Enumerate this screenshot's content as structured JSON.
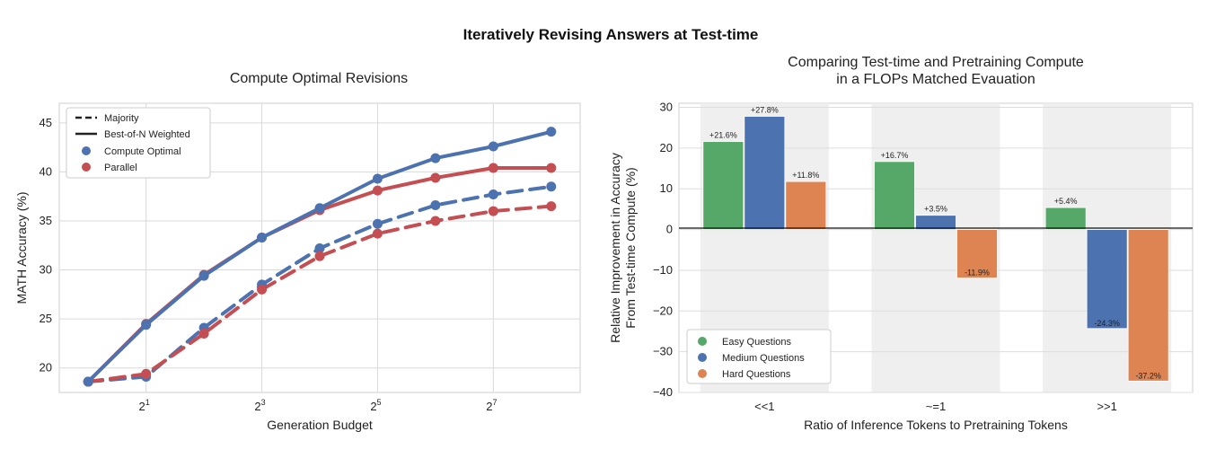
{
  "figure": {
    "suptitle": "Iteratively Revising Answers at Test-time"
  },
  "chart_data": [
    {
      "type": "line",
      "title": "Compute Optimal Revisions",
      "xlabel": "Generation Budget",
      "ylabel": "MATH Accuracy (%)",
      "x_scale": "log2",
      "x": [
        1,
        2,
        4,
        8,
        16,
        32,
        64,
        128,
        256
      ],
      "xlim_log2": [
        -0.5,
        8.5
      ],
      "ylim": [
        17.5,
        47
      ],
      "xticks": [
        {
          "base": "2",
          "exp": "1",
          "value": 2
        },
        {
          "base": "2",
          "exp": "3",
          "value": 8
        },
        {
          "base": "2",
          "exp": "5",
          "value": 32
        },
        {
          "base": "2",
          "exp": "7",
          "value": 128
        }
      ],
      "yticks": [
        "20",
        "25",
        "30",
        "35",
        "40",
        "45"
      ],
      "grid": true,
      "legend_position": "top-left",
      "legend": [
        {
          "label": "Majority",
          "kind": "dashed-line"
        },
        {
          "label": "Best-of-N Weighted",
          "kind": "solid-line"
        },
        {
          "label": "Compute Optimal",
          "kind": "marker",
          "color": "#4c72b0"
        },
        {
          "label": "Parallel",
          "kind": "marker",
          "color": "#c44e52"
        }
      ],
      "series": [
        {
          "method": "Compute Optimal",
          "aggregation": "Majority",
          "style": "dashed",
          "color": "#4c72b0",
          "values": [
            18.6,
            19.1,
            24.1,
            28.5,
            32.2,
            34.7,
            36.6,
            37.7,
            38.5
          ]
        },
        {
          "method": "Parallel",
          "aggregation": "Majority",
          "style": "dashed",
          "color": "#c44e52",
          "values": [
            18.6,
            19.4,
            23.5,
            28.0,
            31.4,
            33.7,
            35.0,
            36.0,
            36.5
          ]
        },
        {
          "method": "Parallel",
          "aggregation": "Best-of-N Weighted",
          "style": "solid",
          "color": "#c44e52",
          "values": [
            18.6,
            24.5,
            29.5,
            33.3,
            36.1,
            38.1,
            39.4,
            40.4,
            40.4
          ]
        },
        {
          "method": "Compute Optimal",
          "aggregation": "Best-of-N Weighted",
          "style": "solid",
          "color": "#4c72b0",
          "values": [
            18.6,
            24.4,
            29.4,
            33.3,
            36.3,
            39.3,
            41.4,
            42.6,
            44.1
          ]
        }
      ]
    },
    {
      "type": "bar",
      "title_lines": [
        "Comparing Test-time and Pretraining Compute",
        "in a FLOPs Matched Evauation"
      ],
      "xlabel": "Ratio of Inference Tokens to Pretraining Tokens",
      "ylabel_lines": [
        "Relative Improvement in Accuracy",
        "From Test-time Compute (%)"
      ],
      "categories": [
        "<<1",
        "~=1",
        ">>1"
      ],
      "ylim": [
        -40,
        31
      ],
      "yticks": [
        -40,
        -30,
        -20,
        -10,
        0,
        10,
        20,
        30
      ],
      "grid": true,
      "legend_position": "bottom-left",
      "series": [
        {
          "name": "Easy Questions",
          "color": "#55a868",
          "values": [
            21.6,
            16.7,
            5.4
          ],
          "labels": [
            "+21.6%",
            "+16.7%",
            "+5.4%"
          ]
        },
        {
          "name": "Medium Questions",
          "color": "#4c72b0",
          "values": [
            27.8,
            3.5,
            -24.3
          ],
          "labels": [
            "+27.8%",
            "+3.5%",
            "-24.3%"
          ]
        },
        {
          "name": "Hard Questions",
          "color": "#dd8452",
          "values": [
            11.8,
            -11.9,
            -37.2
          ],
          "labels": [
            "+11.8%",
            "-11.9%",
            "-37.2%"
          ]
        }
      ]
    }
  ]
}
